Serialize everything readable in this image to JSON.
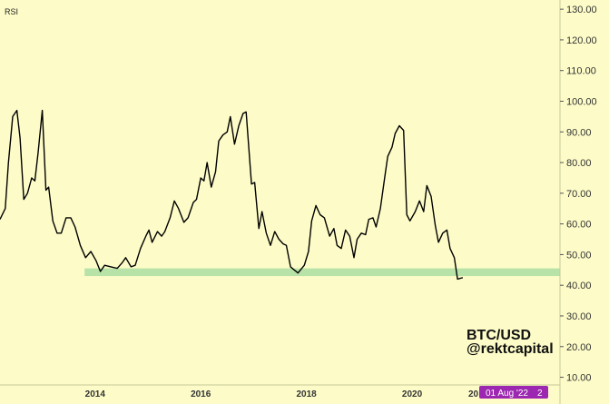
{
  "indicator_label": "RSI",
  "watermark": {
    "line1": "BTC/USD",
    "line2": "@rektcapital"
  },
  "crosshair_label": {
    "text": "01 Aug '22",
    "suffix": "2",
    "color": "#9c27b0"
  },
  "colors": {
    "background": "#fdfcc8",
    "line": "#000000",
    "support_band": "#b8e3a8"
  },
  "chart_data": {
    "type": "line",
    "title": "",
    "xlabel": "",
    "ylabel": "",
    "ylim": [
      7.5,
      133
    ],
    "xlim": [
      2012.2,
      2022.8
    ],
    "x_ticks": [
      2014,
      2016,
      2018,
      2020
    ],
    "x_tick_labels": [
      "2014",
      "2016",
      "2018",
      "2020"
    ],
    "x_tick_partial": "20",
    "y_ticks": [
      10,
      20,
      30,
      40,
      50,
      60,
      70,
      80,
      90,
      100,
      110,
      120,
      130
    ],
    "y_tick_labels": [
      "10.00",
      "20.00",
      "30.00",
      "40.00",
      "50.00",
      "60.00",
      "70.00",
      "80.00",
      "90.00",
      "100.00",
      "110.00",
      "120.00",
      "130.00"
    ],
    "grid": false,
    "support_band": {
      "from": 43,
      "to": 45.5,
      "x_start": 2013.8
    },
    "series": [
      {
        "name": "",
        "points": [
          [
            2012.2,
            61.5
          ],
          [
            2012.3,
            65
          ],
          [
            2012.36,
            80
          ],
          [
            2012.44,
            95
          ],
          [
            2012.52,
            97
          ],
          [
            2012.58,
            88
          ],
          [
            2012.65,
            68
          ],
          [
            2012.72,
            70
          ],
          [
            2012.8,
            75
          ],
          [
            2012.86,
            74
          ],
          [
            2012.92,
            83
          ],
          [
            2013.0,
            97
          ],
          [
            2013.07,
            71
          ],
          [
            2013.12,
            72
          ],
          [
            2013.2,
            61
          ],
          [
            2013.28,
            57
          ],
          [
            2013.36,
            57
          ],
          [
            2013.45,
            62
          ],
          [
            2013.54,
            62
          ],
          [
            2013.62,
            59
          ],
          [
            2013.72,
            53
          ],
          [
            2013.82,
            49
          ],
          [
            2013.92,
            51
          ],
          [
            2014.02,
            48
          ],
          [
            2014.1,
            44.5
          ],
          [
            2014.18,
            46.5
          ],
          [
            2014.3,
            46
          ],
          [
            2014.42,
            45.5
          ],
          [
            2014.52,
            47.5
          ],
          [
            2014.58,
            49
          ],
          [
            2014.68,
            46
          ],
          [
            2014.76,
            46.5
          ],
          [
            2014.86,
            52
          ],
          [
            2014.96,
            56
          ],
          [
            2015.02,
            58
          ],
          [
            2015.08,
            54
          ],
          [
            2015.18,
            57.5
          ],
          [
            2015.26,
            56
          ],
          [
            2015.32,
            57.5
          ],
          [
            2015.42,
            62
          ],
          [
            2015.5,
            67.5
          ],
          [
            2015.58,
            65
          ],
          [
            2015.68,
            60.5
          ],
          [
            2015.76,
            62
          ],
          [
            2015.86,
            67
          ],
          [
            2015.92,
            68
          ],
          [
            2016.0,
            75
          ],
          [
            2016.06,
            74
          ],
          [
            2016.12,
            80
          ],
          [
            2016.2,
            72
          ],
          [
            2016.28,
            77
          ],
          [
            2016.34,
            87
          ],
          [
            2016.42,
            89
          ],
          [
            2016.5,
            90
          ],
          [
            2016.56,
            95
          ],
          [
            2016.64,
            86
          ],
          [
            2016.72,
            92
          ],
          [
            2016.8,
            96
          ],
          [
            2016.86,
            96.5
          ],
          [
            2016.96,
            73
          ],
          [
            2017.02,
            73.5
          ],
          [
            2017.1,
            58.5
          ],
          [
            2017.16,
            64
          ],
          [
            2017.24,
            57
          ],
          [
            2017.32,
            53
          ],
          [
            2017.4,
            57.5
          ],
          [
            2017.48,
            55
          ],
          [
            2017.56,
            53.5
          ],
          [
            2017.62,
            53
          ],
          [
            2017.7,
            46
          ],
          [
            2017.84,
            44
          ],
          [
            2017.96,
            46.5
          ],
          [
            2018.04,
            51
          ],
          [
            2018.1,
            61
          ],
          [
            2018.18,
            66
          ],
          [
            2018.26,
            63
          ],
          [
            2018.34,
            62
          ],
          [
            2018.44,
            56
          ],
          [
            2018.52,
            58.5
          ],
          [
            2018.58,
            53
          ],
          [
            2018.66,
            52
          ],
          [
            2018.74,
            58
          ],
          [
            2018.82,
            56
          ],
          [
            2018.9,
            49
          ],
          [
            2018.96,
            55
          ],
          [
            2019.04,
            57
          ],
          [
            2019.12,
            56.5
          ],
          [
            2019.18,
            61.5
          ],
          [
            2019.26,
            62
          ],
          [
            2019.32,
            59
          ],
          [
            2019.4,
            65
          ],
          [
            2019.48,
            75
          ],
          [
            2019.54,
            82
          ],
          [
            2019.62,
            85
          ],
          [
            2019.68,
            89.5
          ],
          [
            2019.76,
            92
          ],
          [
            2019.84,
            90.5
          ],
          [
            2019.9,
            63
          ],
          [
            2019.96,
            61
          ],
          [
            2020.06,
            64
          ],
          [
            2020.14,
            67.5
          ],
          [
            2020.22,
            64
          ],
          [
            2020.28,
            72.5
          ],
          [
            2020.36,
            69
          ],
          [
            2020.44,
            59.5
          ],
          [
            2020.5,
            54
          ],
          [
            2020.58,
            57
          ],
          [
            2020.66,
            58
          ],
          [
            2020.72,
            52
          ],
          [
            2020.8,
            49
          ],
          [
            2020.86,
            42
          ],
          [
            2020.96,
            42.5
          ]
        ]
      }
    ]
  }
}
